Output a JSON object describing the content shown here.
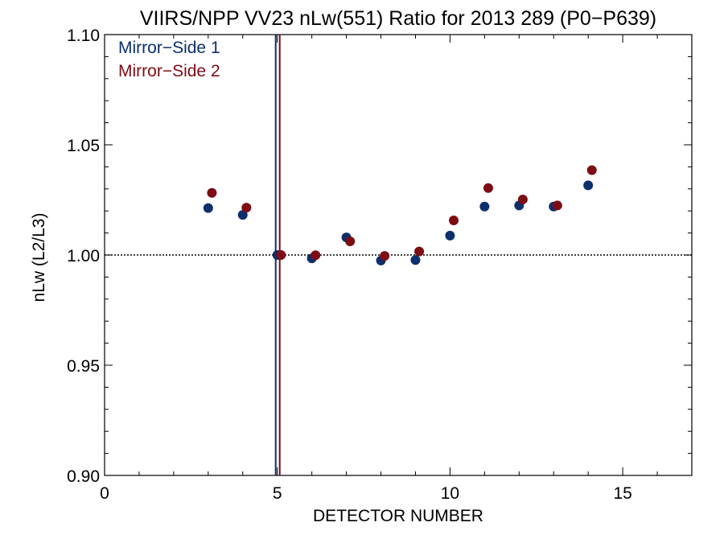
{
  "chart_data": {
    "type": "scatter",
    "title": "VIIRS/NPP VV23 nLw(551) Ratio for 2013 289 (P0−P639)",
    "xlabel": "DETECTOR NUMBER",
    "ylabel": "nLw (L2/L3)",
    "xlim": [
      0,
      17
    ],
    "ylim": [
      0.9,
      1.1
    ],
    "x_ticks": [
      0,
      5,
      10,
      15
    ],
    "x_tick_labels": [
      "0",
      "5",
      "10",
      "15"
    ],
    "y_ticks": [
      0.9,
      0.95,
      1.0,
      1.05,
      1.1
    ],
    "y_tick_labels": [
      "0.90",
      "0.95",
      "1.00",
      "1.05",
      "1.10"
    ],
    "reference_line_y": 1.0,
    "legend_position": "top-left",
    "series": [
      {
        "name": "Mirror−Side 1",
        "color": "#0d2f6b",
        "x": [
          3,
          4,
          5,
          6,
          7,
          8,
          9,
          10,
          11,
          12,
          13,
          14
        ],
        "values": [
          1.0213,
          1.0182,
          1.0,
          0.9985,
          1.008,
          0.9975,
          0.9977,
          1.0088,
          1.022,
          1.0225,
          1.022,
          1.0316
        ],
        "marker_line_x": 5
      },
      {
        "name": "Mirror−Side 2",
        "color": "#7d0c14",
        "x": [
          3,
          4,
          5,
          6,
          7,
          8,
          9,
          10,
          11,
          12,
          13,
          14
        ],
        "values": [
          1.0282,
          1.0215,
          1.0,
          0.9999,
          1.0062,
          0.9996,
          1.0016,
          1.0157,
          1.0304,
          1.0252,
          1.0225,
          1.0385
        ],
        "marker_line_x": 5
      }
    ]
  }
}
